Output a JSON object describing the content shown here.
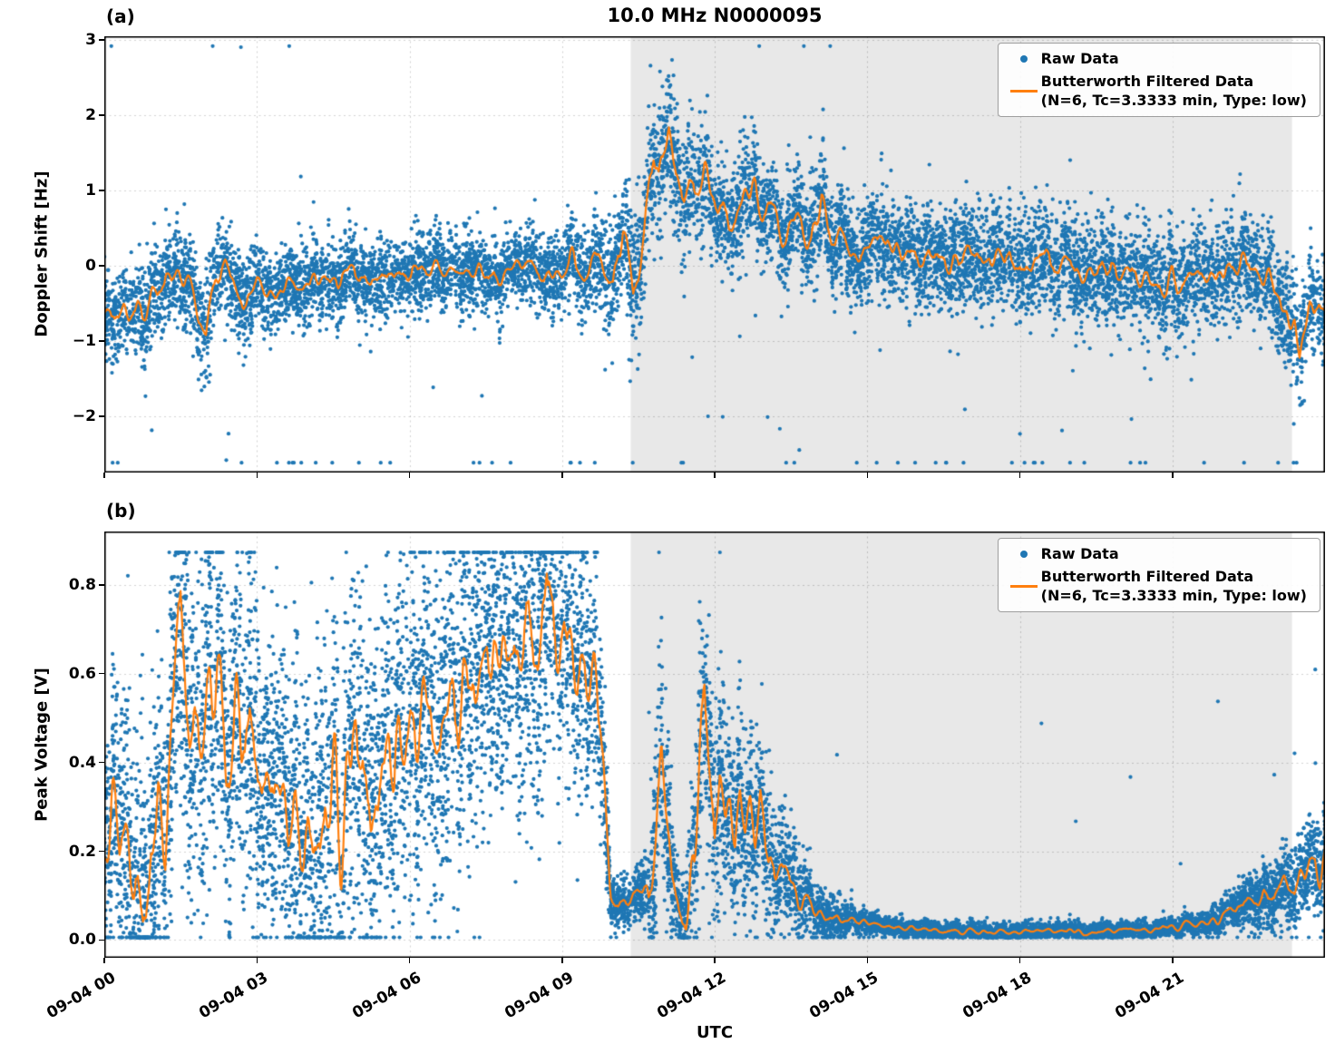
{
  "title": "10.0 MHz N0000095",
  "xlabel": "UTC",
  "legend": {
    "raw_label": "Raw Data",
    "filtered_label": "Butterworth Filtered Data",
    "filtered_sublabel": "(N=6, Tc=3.3333 min, Type: low)"
  },
  "colors": {
    "raw": "#1f77b4",
    "filtered": "#ff7f0e",
    "shade": "#e8e8e8",
    "grid": "rgba(0,0,0,0.18)",
    "axis": "#000000"
  },
  "x_axis": {
    "range": [
      0,
      24
    ],
    "ticks": [
      0,
      3,
      6,
      9,
      12,
      15,
      18,
      21
    ],
    "tick_labels": [
      "09-04 00",
      "09-04 03",
      "09-04 06",
      "09-04 09",
      "09-04 12",
      "09-04 15",
      "09-04 18",
      "09-04 21"
    ]
  },
  "shade_region": {
    "start": 10.35,
    "end": 23.35
  },
  "chart_data": [
    {
      "type": "scatter",
      "canvas_name": "doppler-shift-plot",
      "panel_label": "(a)",
      "ylabel": "Doppler Shift [Hz]",
      "ylim": [
        -2.75,
        3.05
      ],
      "yticks": [
        -2,
        -1,
        0,
        1,
        2,
        3
      ],
      "ytick_labels": [
        "−2",
        "−1",
        "0",
        "1",
        "2",
        "3"
      ],
      "seed": 7,
      "line_jitter_frac": 0.5,
      "filtered": {
        "t": [
          0,
          0.2,
          0.4,
          0.6,
          0.8,
          1,
          1.2,
          1.4,
          1.6,
          1.8,
          1.9,
          2,
          2.1,
          2.2,
          2.4,
          2.6,
          2.8,
          3,
          3.2,
          3.4,
          3.6,
          3.8,
          4,
          4.2,
          4.4,
          4.6,
          4.8,
          5,
          5.2,
          5.4,
          5.6,
          5.8,
          6,
          6.2,
          6.4,
          6.6,
          6.8,
          7,
          7.2,
          7.4,
          7.6,
          7.8,
          8,
          8.2,
          8.4,
          8.6,
          8.8,
          9,
          9.2,
          9.4,
          9.6,
          9.8,
          10,
          10.1,
          10.2,
          10.3,
          10.4,
          10.5,
          10.6,
          10.7,
          10.8,
          10.9,
          11,
          11.1,
          11.2,
          11.3,
          11.4,
          11.5,
          11.6,
          11.7,
          11.8,
          11.9,
          12,
          12.2,
          12.4,
          12.6,
          12.8,
          13,
          13.2,
          13.4,
          13.6,
          13.8,
          14,
          14.1,
          14.2,
          14.4,
          14.6,
          14.8,
          15,
          15.2,
          15.4,
          15.6,
          15.8,
          16,
          16.2,
          16.4,
          16.6,
          16.8,
          17,
          17.2,
          17.4,
          17.6,
          17.8,
          18,
          18.2,
          18.4,
          18.6,
          18.8,
          19,
          19.2,
          19.4,
          19.6,
          19.8,
          20,
          20.2,
          20.4,
          20.6,
          20.8,
          21,
          21.2,
          21.4,
          21.6,
          21.8,
          22,
          22.2,
          22.4,
          22.5,
          22.6,
          22.8,
          23,
          23.2,
          23.4,
          23.5,
          23.6,
          23.7,
          23.8,
          24
        ],
        "v": [
          -0.55,
          -0.65,
          -0.5,
          -0.72,
          -0.55,
          -0.3,
          -0.2,
          -0.35,
          -0.25,
          -0.45,
          -0.8,
          -1.05,
          -0.55,
          -0.2,
          -0.15,
          -0.3,
          -0.35,
          -0.25,
          -0.4,
          -0.45,
          -0.3,
          -0.35,
          -0.25,
          -0.3,
          -0.2,
          -0.25,
          -0.15,
          -0.1,
          -0.2,
          -0.1,
          -0.15,
          -0.05,
          -0.1,
          0,
          -0.05,
          -0.15,
          -0.05,
          -0.1,
          -0.15,
          -0.05,
          -0.1,
          -0.2,
          -0.15,
          -0.05,
          0.1,
          -0.1,
          -0.2,
          -0.05,
          0.15,
          0,
          -0.05,
          -0.15,
          -0.2,
          0.3,
          0.55,
          -0.1,
          -0.75,
          -0.3,
          0.2,
          0.9,
          1.3,
          1.1,
          1.45,
          1.8,
          1.4,
          1.1,
          0.95,
          1.15,
          1,
          1.2,
          1.3,
          1.1,
          0.9,
          0.6,
          0.5,
          0.95,
          1,
          0.7,
          0.55,
          0.45,
          0.6,
          0.4,
          0.5,
          0.9,
          0.6,
          0.3,
          0.35,
          0.25,
          0.3,
          0.2,
          0.25,
          0.15,
          0.2,
          0.1,
          0.2,
          0.05,
          0.15,
          0,
          0.1,
          -0.05,
          0.1,
          0,
          0.05,
          0.1,
          0,
          0.1,
          -0.05,
          0.05,
          0,
          -0.1,
          -0.05,
          -0.15,
          -0.1,
          -0.2,
          -0.1,
          -0.2,
          -0.15,
          -0.25,
          -0.15,
          -0.2,
          -0.1,
          -0.2,
          -0.15,
          -0.25,
          -0.1,
          0.15,
          0.3,
          0.1,
          -0.15,
          -0.3,
          -0.45,
          -0.7,
          -1.1,
          -0.8,
          -0.5,
          -0.55,
          -0.6
        ]
      },
      "raw": {
        "points_per_hour": 430,
        "spread_t": [
          0,
          1,
          2,
          3,
          6,
          9,
          9.9,
          10.4,
          10.8,
          12,
          13,
          14,
          16,
          18,
          20,
          22,
          23,
          23.6,
          24
        ],
        "spread_v": [
          0.32,
          0.3,
          0.33,
          0.28,
          0.25,
          0.25,
          0.35,
          0.5,
          0.45,
          0.4,
          0.35,
          0.33,
          0.33,
          0.35,
          0.33,
          0.33,
          0.35,
          0.4,
          0.35
        ],
        "clip": [
          -2.62,
          2.92
        ],
        "outlier_prob": 0.006,
        "outlier_scale": 1.0,
        "outlier_down_frac": 0.85
      }
    },
    {
      "type": "scatter",
      "canvas_name": "peak-voltage-plot",
      "panel_label": "(b)",
      "ylabel": "Peak Voltage [V]",
      "ylim": [
        -0.04,
        0.92
      ],
      "yticks": [
        0,
        0.2,
        0.4,
        0.6,
        0.8
      ],
      "ytick_labels": [
        "0.0",
        "0.2",
        "0.4",
        "0.6",
        "0.8"
      ],
      "seed": 13,
      "line_jitter_frac": 0.55,
      "filtered": {
        "t": [
          0,
          0.15,
          0.3,
          0.45,
          0.6,
          0.75,
          0.9,
          1.05,
          1.2,
          1.35,
          1.5,
          1.65,
          1.8,
          1.95,
          2.1,
          2.25,
          2.4,
          2.55,
          2.7,
          2.85,
          3,
          3.15,
          3.3,
          3.45,
          3.6,
          3.75,
          3.9,
          4.05,
          4.2,
          4.35,
          4.5,
          4.65,
          4.8,
          4.95,
          5.1,
          5.25,
          5.4,
          5.55,
          5.7,
          5.85,
          6,
          6.15,
          6.3,
          6.45,
          6.6,
          6.75,
          6.9,
          7.05,
          7.2,
          7.35,
          7.5,
          7.65,
          7.8,
          7.95,
          8.1,
          8.25,
          8.4,
          8.55,
          8.7,
          8.85,
          9,
          9.15,
          9.3,
          9.45,
          9.6,
          9.75,
          9.85,
          9.95,
          10.1,
          10.3,
          10.5,
          10.7,
          10.85,
          10.95,
          11.05,
          11.15,
          11.3,
          11.45,
          11.6,
          11.7,
          11.8,
          11.9,
          12,
          12.1,
          12.2,
          12.3,
          12.4,
          12.5,
          12.6,
          12.7,
          12.8,
          12.9,
          13,
          13.2,
          13.4,
          13.6,
          13.8,
          14,
          14.2,
          14.4,
          14.6,
          14.8,
          15,
          15.5,
          16,
          16.5,
          17,
          17.5,
          18,
          18.5,
          19,
          19.5,
          20,
          20.5,
          21,
          21.5,
          22,
          22.2,
          22.4,
          22.6,
          22.8,
          23,
          23.2,
          23.4,
          23.6,
          23.8,
          23.9,
          24
        ],
        "v": [
          0.28,
          0.38,
          0.22,
          0.3,
          0.18,
          0.13,
          0.25,
          0.33,
          0.25,
          0.45,
          0.68,
          0.55,
          0.43,
          0.52,
          0.57,
          0.52,
          0.45,
          0.5,
          0.42,
          0.46,
          0.35,
          0.28,
          0.38,
          0.3,
          0.25,
          0.32,
          0.2,
          0.16,
          0.3,
          0.38,
          0.3,
          0.25,
          0.35,
          0.42,
          0.35,
          0.28,
          0.35,
          0.45,
          0.38,
          0.5,
          0.55,
          0.42,
          0.5,
          0.44,
          0.52,
          0.58,
          0.48,
          0.62,
          0.55,
          0.65,
          0.58,
          0.62,
          0.55,
          0.65,
          0.6,
          0.7,
          0.78,
          0.63,
          0.8,
          0.68,
          0.6,
          0.7,
          0.63,
          0.68,
          0.6,
          0.54,
          0.35,
          0.1,
          0.07,
          0.09,
          0.11,
          0.09,
          0.25,
          0.5,
          0.3,
          0.12,
          0.08,
          0.07,
          0.2,
          0.45,
          0.56,
          0.35,
          0.2,
          0.32,
          0.25,
          0.33,
          0.22,
          0.3,
          0.24,
          0.3,
          0.22,
          0.28,
          0.2,
          0.15,
          0.12,
          0.1,
          0.08,
          0.07,
          0.06,
          0.05,
          0.045,
          0.04,
          0.035,
          0.03,
          0.025,
          0.02,
          0.02,
          0.018,
          0.02,
          0.018,
          0.02,
          0.02,
          0.022,
          0.025,
          0.03,
          0.035,
          0.05,
          0.07,
          0.09,
          0.08,
          0.12,
          0.1,
          0.14,
          0.12,
          0.16,
          0.21,
          0.15,
          0.19
        ]
      },
      "raw": {
        "points_per_hour": 520,
        "spread_t": [
          0,
          0.5,
          1.5,
          3,
          5,
          7,
          9,
          9.7,
          10,
          10.6,
          10.9,
          11.3,
          11.75,
          12.5,
          13,
          13.5,
          14,
          14.5,
          15,
          16,
          21,
          21.5,
          22,
          22.5,
          23,
          23.5,
          24
        ],
        "spread_v": [
          0.13,
          0.16,
          0.2,
          0.18,
          0.2,
          0.2,
          0.17,
          0.14,
          0.025,
          0.03,
          0.15,
          0.04,
          0.15,
          0.1,
          0.09,
          0.06,
          0.035,
          0.02,
          0.012,
          0.01,
          0.01,
          0.012,
          0.02,
          0.03,
          0.04,
          0.05,
          0.06
        ],
        "clip": [
          0.006,
          0.873
        ],
        "outlier_prob": 0.004,
        "outlier_scale": 0.1,
        "outlier_down_frac": 0.3
      }
    }
  ]
}
